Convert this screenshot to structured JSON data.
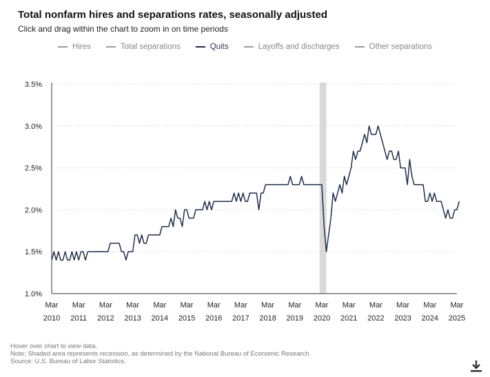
{
  "header": {
    "title": "Total nonfarm hires and separations rates, seasonally adjusted",
    "subtitle": "Click and drag within the chart to zoom in on time periods"
  },
  "legend": [
    {
      "label": "Hires",
      "active": false
    },
    {
      "label": "Total separations",
      "active": false
    },
    {
      "label": "Quits",
      "active": true
    },
    {
      "label": "Layoffs and discharges",
      "active": false
    },
    {
      "label": "Other separations",
      "active": false
    }
  ],
  "notes": {
    "hover": "Hover over chart to view data.",
    "note": "Note: Shaded area represents recession, as determined by the National Bureau of Economic Research.",
    "source": "Source: U.S. Bureau of Labor Statistics."
  },
  "icons": {
    "download": "download-icon"
  },
  "colors": {
    "series": "#1f2d4a",
    "recession": "#d9d9d9",
    "grid": "#bbbbbb"
  },
  "chart_data": {
    "type": "line",
    "title": "Total nonfarm hires and separations rates, seasonally adjusted",
    "series_name": "Quits",
    "xlabel": "",
    "ylabel": "",
    "ylim": [
      1.0,
      3.5
    ],
    "yticks": [
      "1.0%",
      "1.5%",
      "2.0%",
      "2.5%",
      "3.0%",
      "3.5%"
    ],
    "ytick_values": [
      1.0,
      1.5,
      2.0,
      2.5,
      3.0,
      3.5
    ],
    "xticks": [
      {
        "month": "Mar",
        "year": "2010",
        "t": 0
      },
      {
        "month": "Mar",
        "year": "2011",
        "t": 1
      },
      {
        "month": "Mar",
        "year": "2012",
        "t": 2
      },
      {
        "month": "Mar",
        "year": "2013",
        "t": 3
      },
      {
        "month": "Mar",
        "year": "2014",
        "t": 4
      },
      {
        "month": "Mar",
        "year": "2015",
        "t": 5
      },
      {
        "month": "Mar",
        "year": "2016",
        "t": 6
      },
      {
        "month": "Mar",
        "year": "2017",
        "t": 7
      },
      {
        "month": "Mar",
        "year": "2018",
        "t": 8
      },
      {
        "month": "Mar",
        "year": "2019",
        "t": 9
      },
      {
        "month": "Mar",
        "year": "2020",
        "t": 10
      },
      {
        "month": "Mar",
        "year": "2021",
        "t": 11
      },
      {
        "month": "Mar",
        "year": "2022",
        "t": 12
      },
      {
        "month": "Mar",
        "year": "2023",
        "t": 13
      },
      {
        "month": "Mar",
        "year": "2024",
        "t": 14
      },
      {
        "month": "Mar",
        "year": "2025",
        "t": 15
      }
    ],
    "recession": {
      "start": 9.917,
      "end": 10.167
    },
    "start_label": "Mar 2010",
    "values": [
      1.4,
      1.5,
      1.4,
      1.5,
      1.4,
      1.4,
      1.5,
      1.4,
      1.4,
      1.5,
      1.4,
      1.5,
      1.4,
      1.5,
      1.5,
      1.4,
      1.5,
      1.5,
      1.5,
      1.5,
      1.5,
      1.5,
      1.5,
      1.5,
      1.5,
      1.5,
      1.6,
      1.6,
      1.6,
      1.6,
      1.6,
      1.5,
      1.5,
      1.4,
      1.5,
      1.5,
      1.5,
      1.7,
      1.7,
      1.6,
      1.7,
      1.6,
      1.6,
      1.7,
      1.7,
      1.7,
      1.7,
      1.7,
      1.7,
      1.8,
      1.8,
      1.8,
      1.8,
      1.9,
      1.8,
      2.0,
      1.9,
      1.9,
      1.8,
      2.0,
      2.0,
      1.9,
      1.9,
      1.9,
      2.0,
      2.0,
      2.0,
      2.0,
      2.1,
      2.0,
      2.1,
      2.0,
      2.1,
      2.1,
      2.1,
      2.1,
      2.1,
      2.1,
      2.1,
      2.1,
      2.1,
      2.2,
      2.1,
      2.2,
      2.1,
      2.2,
      2.1,
      2.1,
      2.2,
      2.2,
      2.2,
      2.2,
      2.0,
      2.2,
      2.2,
      2.3,
      2.3,
      2.3,
      2.3,
      2.3,
      2.3,
      2.3,
      2.3,
      2.3,
      2.3,
      2.3,
      2.4,
      2.3,
      2.3,
      2.3,
      2.3,
      2.4,
      2.3,
      2.3,
      2.3,
      2.3,
      2.3,
      2.3,
      2.3,
      2.3,
      2.3,
      1.8,
      1.5,
      1.7,
      1.9,
      2.2,
      2.1,
      2.2,
      2.3,
      2.2,
      2.4,
      2.3,
      2.4,
      2.5,
      2.7,
      2.6,
      2.7,
      2.7,
      2.8,
      2.9,
      2.8,
      3.0,
      2.9,
      2.9,
      2.9,
      3.0,
      2.9,
      2.8,
      2.7,
      2.6,
      2.7,
      2.7,
      2.6,
      2.6,
      2.7,
      2.5,
      2.5,
      2.5,
      2.3,
      2.6,
      2.4,
      2.3,
      2.3,
      2.3,
      2.3,
      2.3,
      2.1,
      2.1,
      2.2,
      2.1,
      2.2,
      2.1,
      2.1,
      2.1,
      2.0,
      1.9,
      2.0,
      1.9,
      1.9,
      2.0,
      2.0,
      2.1
    ]
  }
}
